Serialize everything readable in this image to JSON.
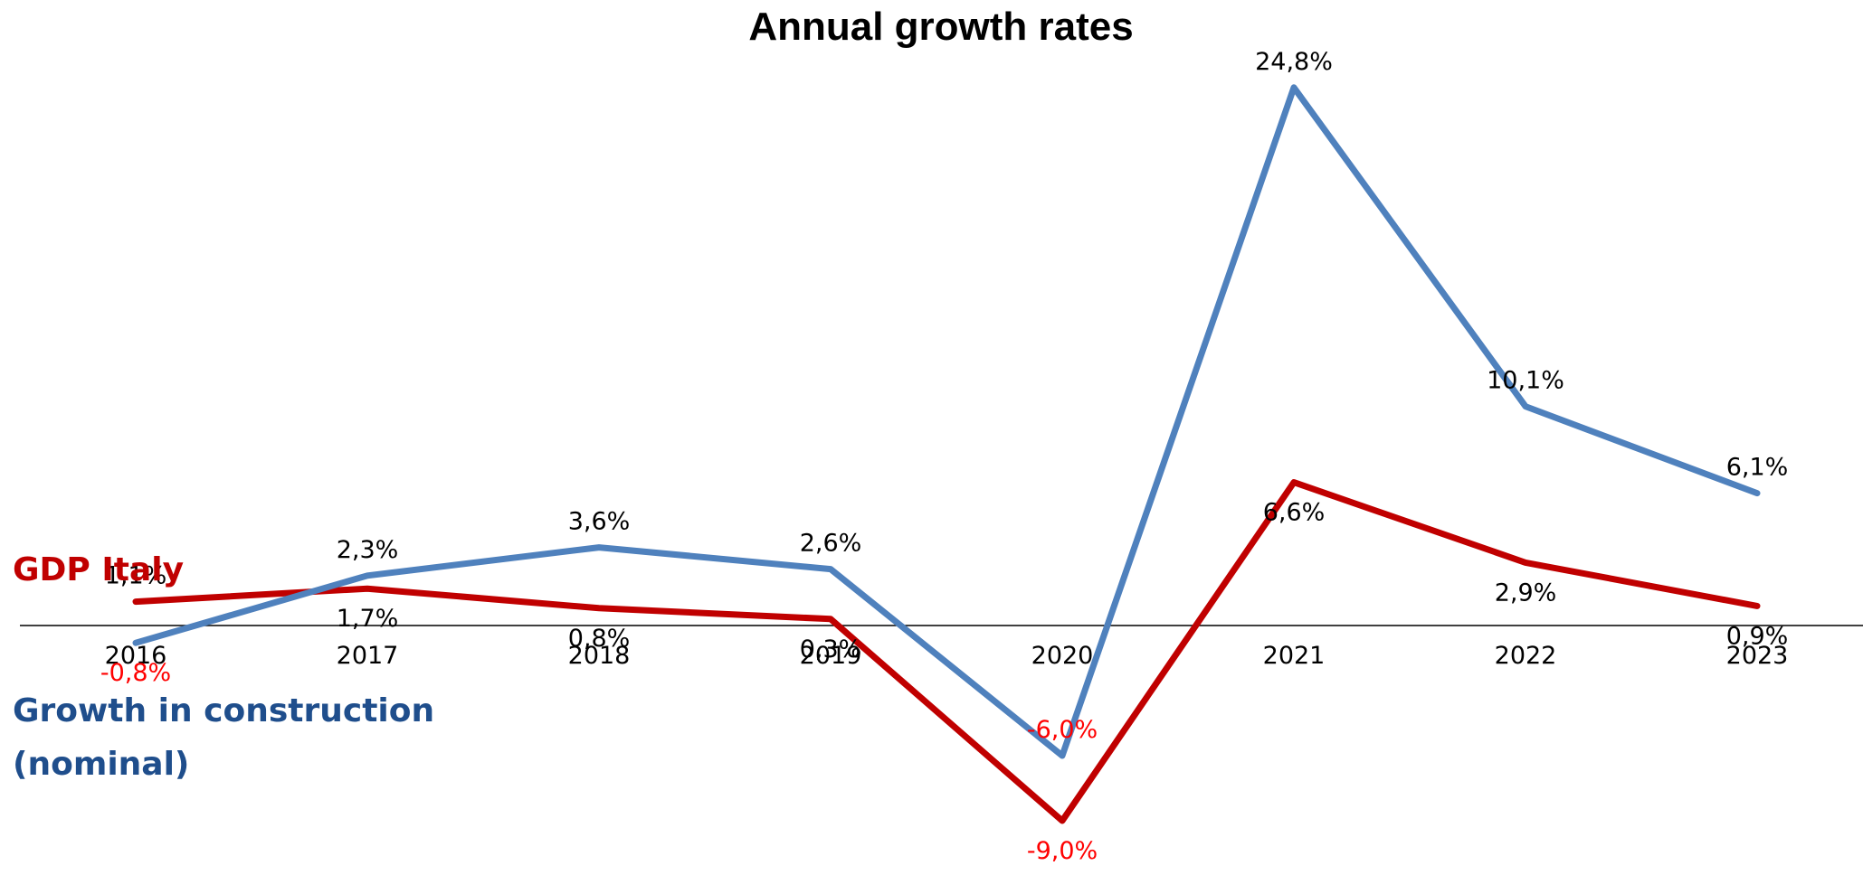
{
  "chart_data": {
    "type": "line",
    "title": "Annual growth rates",
    "xlabel": "",
    "ylabel": "",
    "categories": [
      "2016",
      "2017",
      "2018",
      "2019",
      "2020",
      "2021",
      "2022",
      "2023"
    ],
    "ylim": [
      -11,
      27
    ],
    "grid": false,
    "series": [
      {
        "name": "GDP Italy",
        "color": "#C00000",
        "values": [
          1.1,
          1.7,
          0.8,
          0.3,
          -9.0,
          6.6,
          2.9,
          0.9
        ],
        "labels": [
          "1,1%",
          "1,7%",
          "0,8%",
          "0,3%",
          "-9,0%",
          "6,6%",
          "2,9%",
          "0,9%"
        ],
        "label_colors": [
          "#000000",
          "#000000",
          "#000000",
          "#000000",
          "#FF0000",
          "#000000",
          "#000000",
          "#000000"
        ]
      },
      {
        "name": "Growth in construction (nominal)",
        "color": "#4F81BD",
        "values": [
          -0.8,
          2.3,
          3.6,
          2.6,
          -6.0,
          24.8,
          10.1,
          6.1
        ],
        "labels": [
          "-0,8%",
          "2,3%",
          "3,6%",
          "2,6%",
          "-6,0%",
          "24,8%",
          "10,1%",
          "6,1%"
        ],
        "label_colors": [
          "#FF0000",
          "#000000",
          "#000000",
          "#000000",
          "#FF0000",
          "#000000",
          "#000000",
          "#000000"
        ]
      }
    ],
    "legend": {
      "gdp_label": "GDP Italy",
      "construction_label_line1": "Growth in construction",
      "construction_label_line2": "(nominal)",
      "gdp_color": "#C00000",
      "construction_color": "#1F4E8C"
    }
  }
}
